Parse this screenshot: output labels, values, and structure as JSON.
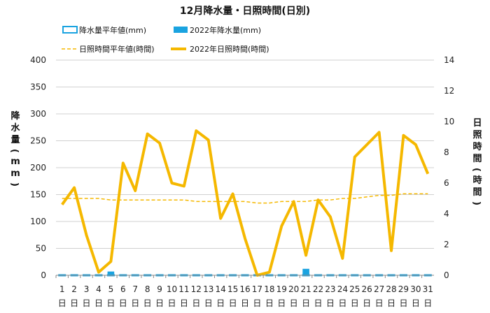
{
  "chart_data": {
    "type": "bar+line",
    "title": "12月降水量・日照時間(日別)",
    "legend": [
      {
        "label": "降水量平年値(mm)",
        "kind": "bar-outline",
        "color": "#1aa3e0"
      },
      {
        "label": "2022年降水量(mm)",
        "kind": "bar-filled",
        "color": "#1aa3e0"
      },
      {
        "label": "日照時間平年値(時間)",
        "kind": "dashed-line",
        "color": "#f5b800"
      },
      {
        "label": "2022年日照時間(時間)",
        "kind": "thick-line",
        "color": "#f5b800"
      }
    ],
    "ylabel_left": "降水量(mm)",
    "ylabel_right": "日照時間(時間)",
    "ylim_left": [
      0,
      400
    ],
    "yticks_left": [
      0,
      50,
      100,
      150,
      200,
      250,
      300,
      350,
      400
    ],
    "ylim_right": [
      0,
      14
    ],
    "yticks_right": [
      0,
      2,
      4,
      6,
      8,
      10,
      12,
      14
    ],
    "x": [
      "1",
      "2",
      "3",
      "4",
      "5",
      "6",
      "7",
      "8",
      "9",
      "10",
      "11",
      "12",
      "13",
      "14",
      "15",
      "16",
      "17",
      "18",
      "19",
      "20",
      "21",
      "22",
      "23",
      "24",
      "25",
      "26",
      "27",
      "28",
      "29",
      "30",
      "31"
    ],
    "x_suffix": "日",
    "series": [
      {
        "name": "降水量平年値(mm)",
        "axis": "left",
        "type": "bar-outline",
        "color": "#1aa3e0",
        "values": [
          1,
          1,
          1,
          1,
          1,
          1,
          1,
          1,
          1,
          1,
          1,
          1,
          1,
          1,
          1,
          1,
          1,
          1,
          1,
          1,
          1,
          1,
          1,
          1,
          1,
          1,
          1,
          1,
          1,
          1,
          1
        ]
      },
      {
        "name": "2022年降水量(mm)",
        "axis": "left",
        "type": "bar",
        "color": "#1aa3e0",
        "values": [
          0,
          0,
          0,
          0,
          7,
          0,
          0,
          0,
          0,
          0,
          0,
          0,
          1,
          0,
          0,
          0,
          0,
          0,
          0,
          0,
          12,
          0,
          0,
          0,
          0,
          0,
          0,
          0,
          0,
          0,
          0
        ]
      },
      {
        "name": "日照時間平年値(時間)",
        "axis": "right",
        "type": "dashed-line",
        "color": "#f5b800",
        "values": [
          5.0,
          5.0,
          5.0,
          5.0,
          4.9,
          4.9,
          4.9,
          4.9,
          4.9,
          4.9,
          4.9,
          4.8,
          4.8,
          4.8,
          4.8,
          4.8,
          4.7,
          4.7,
          4.8,
          4.8,
          4.8,
          4.9,
          4.9,
          5.0,
          5.0,
          5.1,
          5.2,
          5.2,
          5.3,
          5.3,
          5.3
        ]
      },
      {
        "name": "2022年日照時間(時間)",
        "axis": "right",
        "type": "line",
        "color": "#f5b800",
        "values": [
          4.6,
          5.7,
          2.6,
          0.2,
          0.9,
          7.3,
          5.5,
          9.2,
          8.6,
          6.0,
          5.8,
          9.4,
          8.8,
          3.7,
          5.3,
          2.4,
          0.0,
          0.2,
          3.2,
          4.8,
          1.3,
          4.9,
          3.8,
          1.1,
          7.7,
          8.5,
          9.3,
          1.6,
          9.1,
          8.5,
          6.6
        ]
      }
    ]
  }
}
